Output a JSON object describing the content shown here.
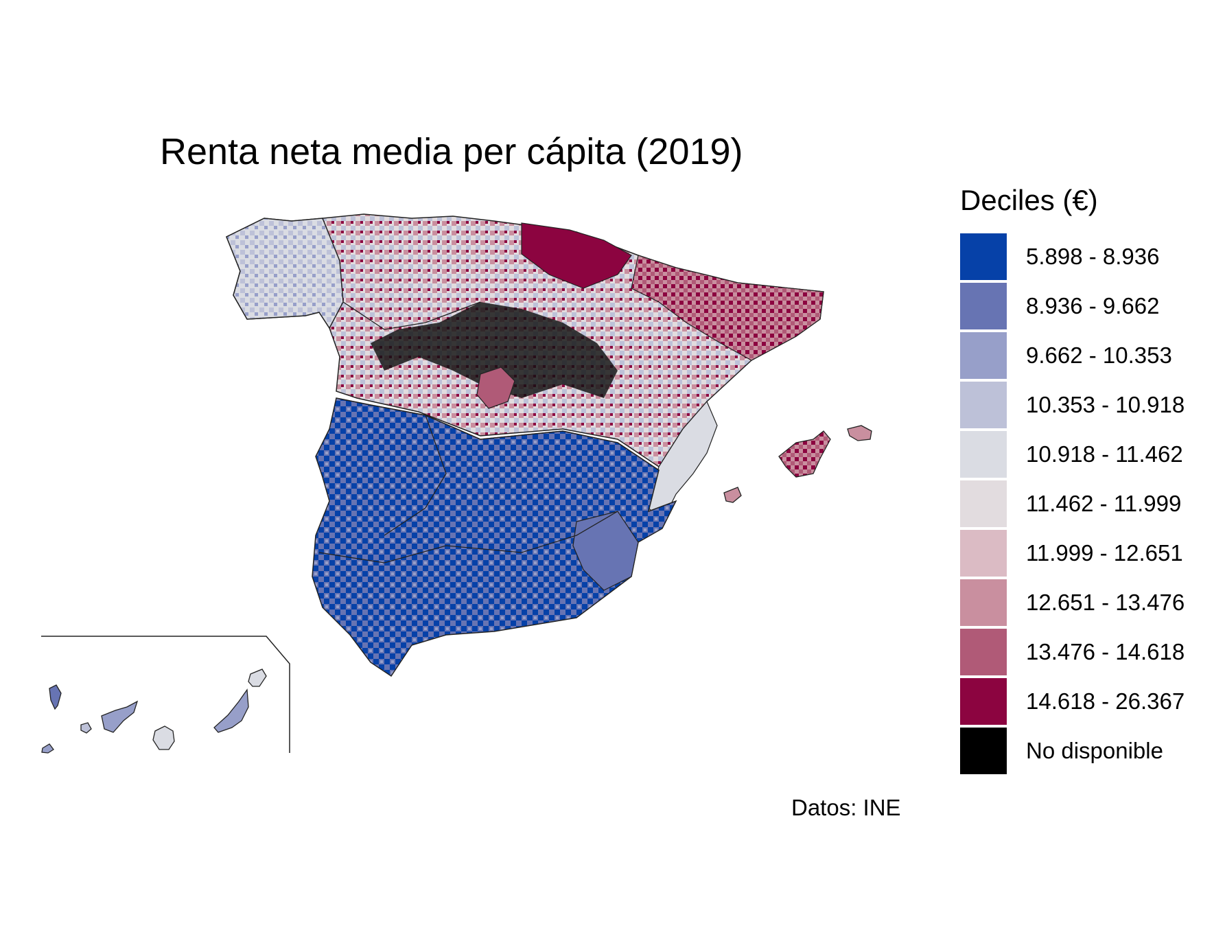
{
  "title": "Renta neta media per cápita (2019)",
  "legend": {
    "title": "Deciles (€)",
    "items": [
      {
        "label": "5.898 - 8.936",
        "color": "#0641a8"
      },
      {
        "label": "8.936 - 9.662",
        "color": "#6774b3"
      },
      {
        "label": "9.662 - 10.353",
        "color": "#979fc9"
      },
      {
        "label": "10.353 - 10.918",
        "color": "#bdc1d8"
      },
      {
        "label": "10.918 - 11.462",
        "color": "#dadce3"
      },
      {
        "label": "11.462 - 11.999",
        "color": "#e2dcdf"
      },
      {
        "label": "11.999 - 12.651",
        "color": "#dbbbc4"
      },
      {
        "label": "12.651 - 13.476",
        "color": "#c98f9f"
      },
      {
        "label": "13.476 - 14.618",
        "color": "#b05a77"
      },
      {
        "label": "14.618 - 26.367",
        "color": "#8c0440"
      },
      {
        "label": "No disponible",
        "color": "#000000"
      }
    ]
  },
  "source": "Datos: INE"
}
